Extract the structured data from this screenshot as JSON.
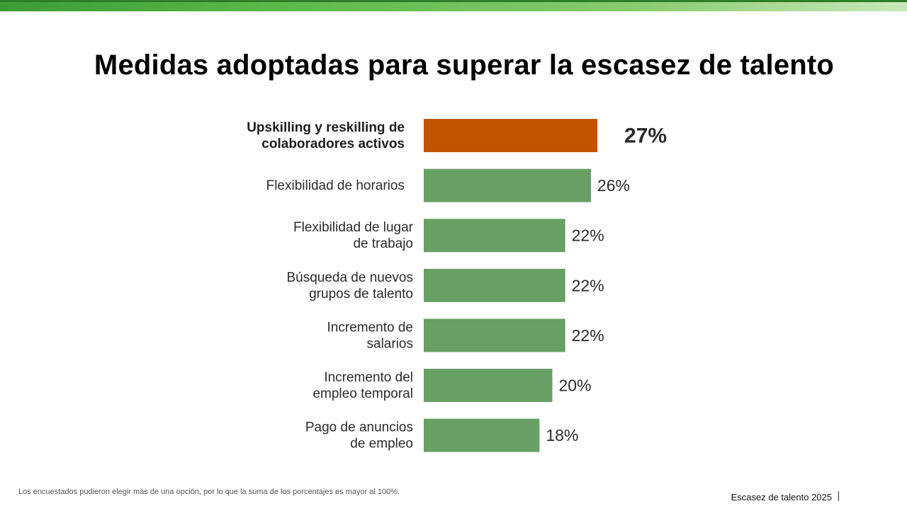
{
  "header": {
    "title": "Medidas adoptadas para superar la escasez de talento"
  },
  "colors": {
    "highlight": "#c25400",
    "bar": "#679f64",
    "top_bar": "#5cb84a"
  },
  "chart_data": {
    "type": "bar",
    "orientation": "horizontal",
    "title": "Medidas adoptadas para superar la escasez de talento",
    "categories": [
      [
        "Upskilling y reskilling de",
        "colaboradores activos"
      ],
      [
        "Flexibilidad de horarios"
      ],
      [
        "Flexibilidad de lugar",
        "de trabajo"
      ],
      [
        "Búsqueda de nuevos",
        "grupos de talento"
      ],
      [
        "Incremento de",
        "salarios"
      ],
      [
        "Incremento del",
        "empleo temporal"
      ],
      [
        "Pago de anuncios",
        "de empleo"
      ]
    ],
    "values": [
      27,
      26,
      22,
      22,
      22,
      20,
      18
    ],
    "value_labels": [
      "27%",
      "26%",
      "22%",
      "22%",
      "22%",
      "20%",
      "18%"
    ],
    "highlight_index": 0,
    "xlim": [
      0,
      100
    ],
    "grid": false,
    "legend": "none"
  },
  "footer": {
    "note": "Los encuestados pudieron elegir más de una opción, por lo que la suma de los porcentajes es mayor al 100%.",
    "brand": "Escasez de talento 2025"
  }
}
